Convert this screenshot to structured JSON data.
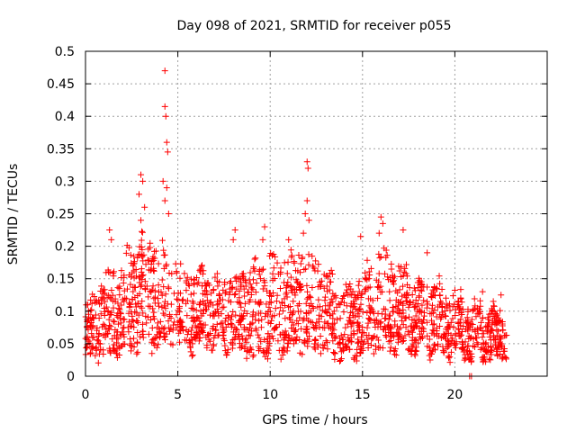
{
  "chart_data": {
    "type": "scatter",
    "title": "Day 098 of 2021, SRMTID for receiver p055",
    "xlabel": "GPS time / hours",
    "ylabel": "SRMTID / TECUs",
    "xlim": [
      0,
      25
    ],
    "ylim": [
      0,
      0.5
    ],
    "x_ticks": [
      0,
      5,
      10,
      15,
      20
    ],
    "x_tick_labels": [
      "0",
      "5",
      "10",
      "15",
      "20"
    ],
    "y_ticks": [
      0,
      0.05,
      0.1,
      0.15,
      0.2,
      0.25,
      0.3,
      0.35,
      0.4,
      0.45,
      0.5
    ],
    "y_tick_labels": [
      "0",
      "0.05",
      "0.1",
      "0.15",
      "0.2",
      "0.25",
      "0.3",
      "0.35",
      "0.4",
      "0.45",
      "0.5"
    ],
    "grid": true,
    "marker": "+",
    "color": "#ff0000",
    "envelope": {
      "description": "approximate hourly range of the dense point cloud",
      "hours": [
        0,
        1,
        2,
        3,
        4,
        5,
        6,
        7,
        8,
        9,
        10,
        11,
        12,
        13,
        14,
        15,
        16,
        17,
        18,
        19,
        20,
        21,
        22,
        22.8
      ],
      "low": [
        0.03,
        0.03,
        0.04,
        0.05,
        0.05,
        0.05,
        0.05,
        0.05,
        0.05,
        0.03,
        0.04,
        0.04,
        0.05,
        0.04,
        0.03,
        0.04,
        0.04,
        0.05,
        0.04,
        0.04,
        0.04,
        0.03,
        0.03,
        0.03
      ],
      "high": [
        0.12,
        0.17,
        0.2,
        0.25,
        0.22,
        0.2,
        0.18,
        0.17,
        0.18,
        0.2,
        0.21,
        0.21,
        0.23,
        0.18,
        0.15,
        0.18,
        0.22,
        0.19,
        0.16,
        0.16,
        0.14,
        0.12,
        0.12,
        0.11
      ]
    },
    "notable_points": [
      {
        "x": 3.0,
        "y": 0.31
      },
      {
        "x": 3.1,
        "y": 0.3
      },
      {
        "x": 2.9,
        "y": 0.28
      },
      {
        "x": 3.2,
        "y": 0.26
      },
      {
        "x": 3.0,
        "y": 0.24
      },
      {
        "x": 4.3,
        "y": 0.47
      },
      {
        "x": 4.3,
        "y": 0.415
      },
      {
        "x": 4.35,
        "y": 0.4
      },
      {
        "x": 4.4,
        "y": 0.36
      },
      {
        "x": 4.45,
        "y": 0.345
      },
      {
        "x": 4.2,
        "y": 0.3
      },
      {
        "x": 4.4,
        "y": 0.29
      },
      {
        "x": 4.3,
        "y": 0.27
      },
      {
        "x": 4.5,
        "y": 0.25
      },
      {
        "x": 1.3,
        "y": 0.225
      },
      {
        "x": 1.4,
        "y": 0.21
      },
      {
        "x": 8.0,
        "y": 0.21
      },
      {
        "x": 8.1,
        "y": 0.225
      },
      {
        "x": 9.7,
        "y": 0.23
      },
      {
        "x": 9.6,
        "y": 0.21
      },
      {
        "x": 11.0,
        "y": 0.21
      },
      {
        "x": 12.0,
        "y": 0.33
      },
      {
        "x": 12.05,
        "y": 0.32
      },
      {
        "x": 12.0,
        "y": 0.27
      },
      {
        "x": 11.9,
        "y": 0.25
      },
      {
        "x": 12.1,
        "y": 0.24
      },
      {
        "x": 11.8,
        "y": 0.22
      },
      {
        "x": 14.9,
        "y": 0.215
      },
      {
        "x": 16.0,
        "y": 0.245
      },
      {
        "x": 16.1,
        "y": 0.235
      },
      {
        "x": 15.9,
        "y": 0.22
      },
      {
        "x": 17.2,
        "y": 0.225
      },
      {
        "x": 18.5,
        "y": 0.19
      },
      {
        "x": 20.8,
        "y": 0.0
      },
      {
        "x": 20.9,
        "y": 0.0
      },
      {
        "x": 20.2,
        "y": 0.11
      },
      {
        "x": 21.5,
        "y": 0.13
      },
      {
        "x": 22.5,
        "y": 0.125
      }
    ],
    "sample_count": 1900,
    "sample_seed": 98
  }
}
